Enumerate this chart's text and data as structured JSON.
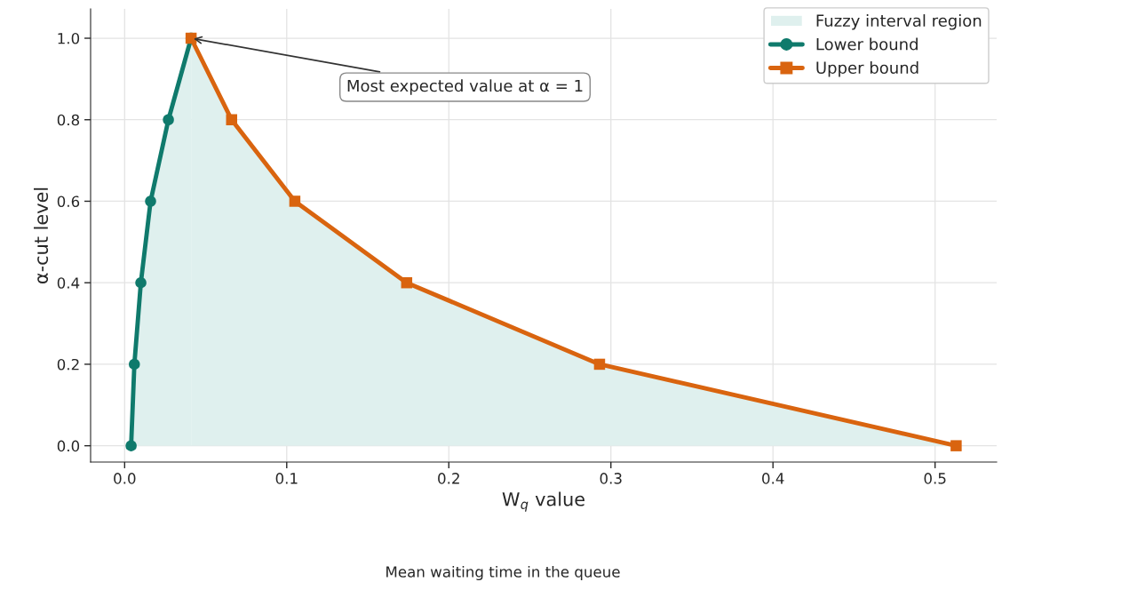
{
  "chart_data": {
    "type": "line",
    "xlabel": "W$_{q}$ value",
    "ylabel": "α-cut level",
    "xlim": [
      -0.021,
      0.538
    ],
    "ylim": [
      -0.04,
      1.072
    ],
    "xticks": [
      {
        "value": 0,
        "label": "0.0"
      },
      0.1,
      0.2,
      0.3,
      0.4,
      0.5
    ],
    "yticks": [
      {
        "value": 0,
        "label": "0.0"
      },
      0.2,
      0.4,
      0.6,
      0.8,
      {
        "value": 1,
        "label": "1.0"
      }
    ],
    "grid": true,
    "legend": "top right",
    "series": [
      {
        "name": "Fuzzy interval region",
        "type": "area",
        "color": "#dff0ee"
      },
      {
        "name": "Lower bound",
        "type": "line",
        "marker": "circle",
        "color": "#0f7a6c",
        "x": [
          0.004,
          0.006,
          0.01,
          0.016,
          0.027,
          0.041
        ],
        "values": [
          0,
          0.2,
          0.4,
          0.6,
          0.8,
          1.0
        ],
        "lower": [
          0,
          0,
          0,
          0,
          0,
          0
        ],
        "upper": [
          0,
          0.2,
          0.4,
          0.6,
          0.8,
          1.0
        ]
      },
      {
        "name": "Upper bound",
        "type": "line",
        "marker": "square",
        "color": "#d9640f",
        "x": [
          0.041,
          0.066,
          0.105,
          0.174,
          0.293,
          0.513
        ],
        "values": [
          1.0,
          0.8,
          0.6,
          0.4,
          0.2,
          0
        ],
        "lower": [
          0,
          0,
          0,
          0,
          0,
          0
        ],
        "upper": [
          1.0,
          0.8,
          0.6,
          0.4,
          0.2,
          0
        ]
      }
    ],
    "annotations": [
      {
        "text": "Most expected value at α = 1",
        "x": 0.041,
        "y": 1.0
      },
      "Mean waiting time in the queue"
    ]
  }
}
